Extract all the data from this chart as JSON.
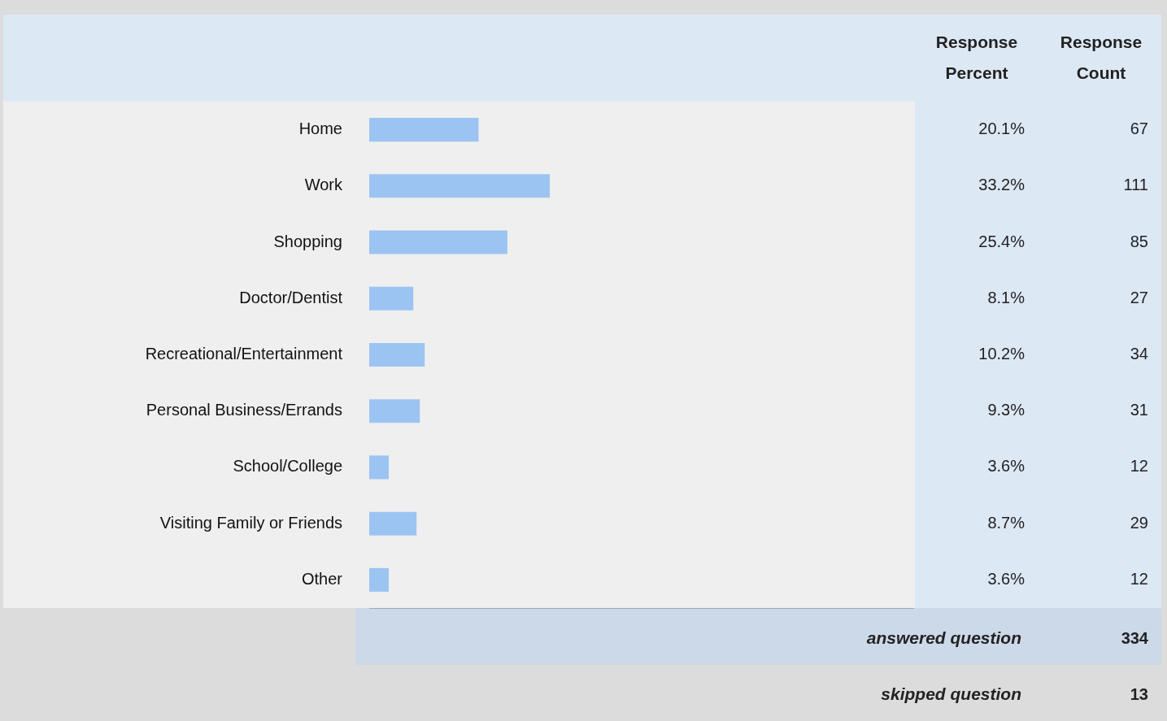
{
  "chart_data": {
    "type": "bar",
    "orientation": "horizontal",
    "xlim": [
      0,
      100
    ],
    "tick_labels": "y",
    "grid": false,
    "legend": false,
    "categories": [
      "Home",
      "Work",
      "Shopping",
      "Doctor/Dentist",
      "Recreational/Entertainment",
      "Personal Business/Errands",
      "School/College",
      "Visiting Family or Friends",
      "Other"
    ],
    "series": [
      {
        "name": "Response Percent",
        "color": "#9cc4f2",
        "values": [
          20.1,
          33.2,
          25.4,
          8.1,
          10.2,
          9.3,
          3.6,
          8.7,
          3.6
        ],
        "value_labels": [
          "20.1%",
          "33.2%",
          "25.4%",
          "8.1%",
          "10.2%",
          "9.3%",
          "3.6%",
          "8.7%",
          "3.6%"
        ]
      }
    ],
    "annotations": [
      "Response Count",
      "67",
      "111",
      "85",
      "27",
      "34",
      "31",
      "12",
      "29",
      "12",
      "answered question",
      "334",
      "skipped question",
      "13"
    ]
  }
}
